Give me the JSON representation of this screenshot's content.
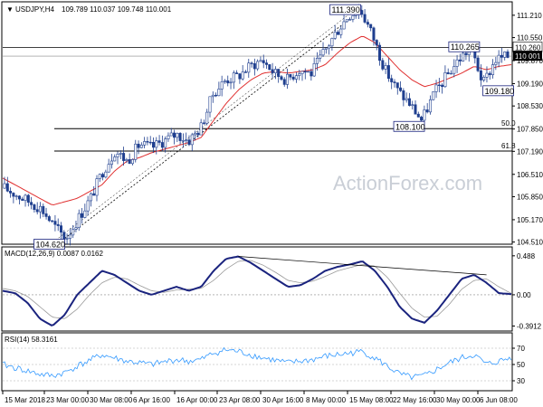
{
  "header": {
    "arrow": "▼",
    "symbol": "USDJPY,H4",
    "ohlc": "109.789 110.037 109.748 110.001"
  },
  "watermark": "ActionForex.com",
  "colors": {
    "candle": "#1f3f8f",
    "ma": "#e03030",
    "macd": "#1a237e",
    "signal": "#999999",
    "rsi": "#3399ff",
    "box_border": "#1a237e",
    "last_price_bg": "#000000"
  },
  "chart_data": [
    {
      "type": "candlestick",
      "ylim": [
        104.5,
        111.5
      ],
      "y_ticks": [
        "111.210",
        "110.550",
        "109.870",
        "109.190",
        "108.530",
        "107.850",
        "107.190",
        "106.510",
        "105.850",
        "105.170",
        "104.510"
      ],
      "x_ticks": [
        "15 Mar 2018",
        "23 Mar 00:00",
        "30 Mar 08:00",
        "6 Apr 16:00",
        "16 Apr 00:00",
        "23 Apr 08:00",
        "30 Apr 16:00",
        "8 May 00:00",
        "15 May 08:00",
        "22 May 16:00",
        "30 May 00:00",
        "6 Jun 08:00"
      ],
      "levels": [
        {
          "label": "50.0",
          "value": 107.86
        },
        {
          "label": "61.8",
          "value": 107.2
        }
      ],
      "last_price": {
        "label": "110.001",
        "value": 110.001
      },
      "ref_price": {
        "label": "110.260",
        "value": 110.26
      },
      "callouts": [
        {
          "text": "104.620",
          "value": 104.62
        },
        {
          "text": "111.390",
          "value": 111.39
        },
        {
          "text": "108.100",
          "value": 108.1
        },
        {
          "text": "110.265",
          "value": 110.265
        },
        {
          "text": "109.180",
          "value": 109.18
        }
      ],
      "price_path": [
        106.1,
        105.9,
        105.7,
        105.5,
        105.0,
        104.62,
        105.2,
        105.8,
        106.6,
        107.2,
        106.9,
        107.4,
        107.3,
        107.5,
        107.7,
        107.5,
        107.9,
        108.9,
        109.3,
        109.4,
        109.7,
        109.9,
        109.5,
        109.3,
        109.6,
        109.5,
        110.1,
        110.7,
        111.2,
        111.39,
        110.6,
        109.6,
        109.0,
        108.6,
        108.1,
        108.9,
        109.4,
        109.9,
        110.265,
        109.18,
        109.9,
        110.0
      ],
      "ma_path": [
        106.4,
        106.2,
        106.0,
        105.8,
        105.6,
        105.7,
        105.8,
        106.0,
        106.2,
        106.6,
        106.9,
        107.0,
        107.15,
        107.25,
        107.35,
        107.45,
        107.6,
        108.1,
        108.6,
        109.0,
        109.3,
        109.5,
        109.55,
        109.5,
        109.55,
        109.6,
        109.75,
        110.1,
        110.4,
        110.6,
        110.4,
        110.0,
        109.6,
        109.3,
        109.1,
        109.2,
        109.35,
        109.5,
        109.7,
        109.6,
        109.7,
        109.75
      ]
    },
    {
      "type": "line",
      "title": "MACD(12,26,9) 0.0087 0.0162",
      "ylim": [
        -0.42,
        0.52
      ],
      "y_ticks": [
        {
          "label": "0.488",
          "value": 0.488
        },
        {
          "label": "0.00",
          "value": 0.0
        },
        {
          "label": "-0.3912",
          "value": -0.3912
        }
      ],
      "macd_path": [
        0.05,
        0.02,
        -0.1,
        -0.3,
        -0.39,
        -0.25,
        0.0,
        0.15,
        0.3,
        0.25,
        0.15,
        0.05,
        0.0,
        0.05,
        0.1,
        0.05,
        0.1,
        0.3,
        0.45,
        0.48,
        0.4,
        0.3,
        0.2,
        0.1,
        0.12,
        0.2,
        0.3,
        0.35,
        0.38,
        0.42,
        0.3,
        0.1,
        -0.15,
        -0.3,
        -0.35,
        -0.2,
        0.0,
        0.2,
        0.25,
        0.15,
        0.02,
        0.0087
      ],
      "signal_path": [
        0.08,
        0.05,
        -0.02,
        -0.15,
        -0.28,
        -0.3,
        -0.18,
        0.0,
        0.15,
        0.22,
        0.2,
        0.12,
        0.05,
        0.03,
        0.06,
        0.07,
        0.08,
        0.18,
        0.32,
        0.42,
        0.43,
        0.37,
        0.28,
        0.18,
        0.15,
        0.17,
        0.23,
        0.3,
        0.34,
        0.38,
        0.36,
        0.22,
        0.02,
        -0.17,
        -0.28,
        -0.27,
        -0.12,
        0.07,
        0.18,
        0.2,
        0.1,
        0.0162
      ]
    },
    {
      "type": "line",
      "title": "RSI(14) 58.3161",
      "ylim": [
        20,
        80
      ],
      "y_ticks": [
        {
          "label": "70",
          "value": 70
        },
        {
          "label": "50",
          "value": 50
        },
        {
          "label": "30",
          "value": 30
        }
      ],
      "rsi_path": [
        50,
        46,
        42,
        38,
        36,
        40,
        48,
        55,
        62,
        58,
        54,
        52,
        50,
        53,
        56,
        54,
        56,
        64,
        68,
        66,
        62,
        58,
        55,
        52,
        54,
        56,
        60,
        62,
        64,
        66,
        58,
        48,
        38,
        34,
        36,
        44,
        52,
        58,
        62,
        50,
        54,
        58.3161
      ]
    }
  ]
}
